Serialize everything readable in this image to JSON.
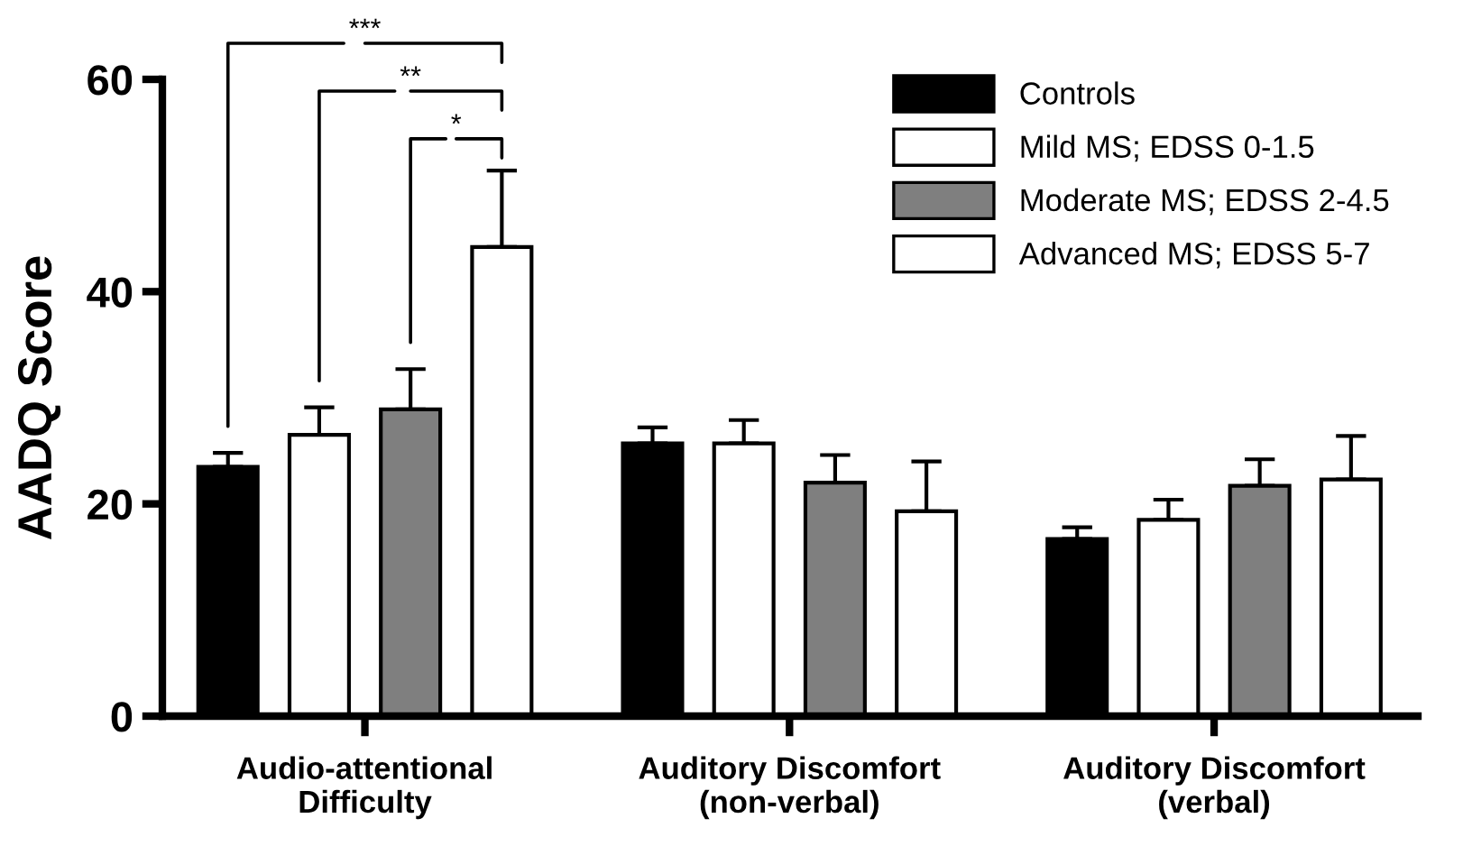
{
  "chart_data": {
    "type": "bar",
    "ylabel": "AADQ Score",
    "categories": [
      "Audio-attentional Difficulty",
      "Auditory Discomfort (non-verbal)",
      "Auditory Discomfort (verbal)"
    ],
    "series": [
      {
        "name": "Controls",
        "color": "#000000",
        "values": [
          23.5,
          25.7,
          16.7
        ],
        "errors": [
          1.3,
          1.5,
          1.1
        ]
      },
      {
        "name": "Mild MS; EDSS 0-1.5",
        "color": "#ffffff",
        "values": [
          26.5,
          25.7,
          18.5
        ],
        "errors": [
          2.6,
          2.2,
          1.9
        ]
      },
      {
        "name": "Moderate MS; EDSS 2-4.5",
        "color": "#7f7f7f",
        "values": [
          28.9,
          22.0,
          21.7
        ],
        "errors": [
          3.8,
          2.6,
          2.5
        ]
      },
      {
        "name": "Advanced MS; EDSS 5-7",
        "color": "#ffffff",
        "values": [
          44.2,
          19.3,
          22.3
        ],
        "errors": [
          7.2,
          4.7,
          4.1
        ]
      }
    ],
    "ylim": [
      0,
      60
    ],
    "yticks": [
      0,
      20,
      40,
      60
    ],
    "grid": false,
    "legend": "top right",
    "annotations": [
      "***",
      "**",
      "*"
    ]
  }
}
